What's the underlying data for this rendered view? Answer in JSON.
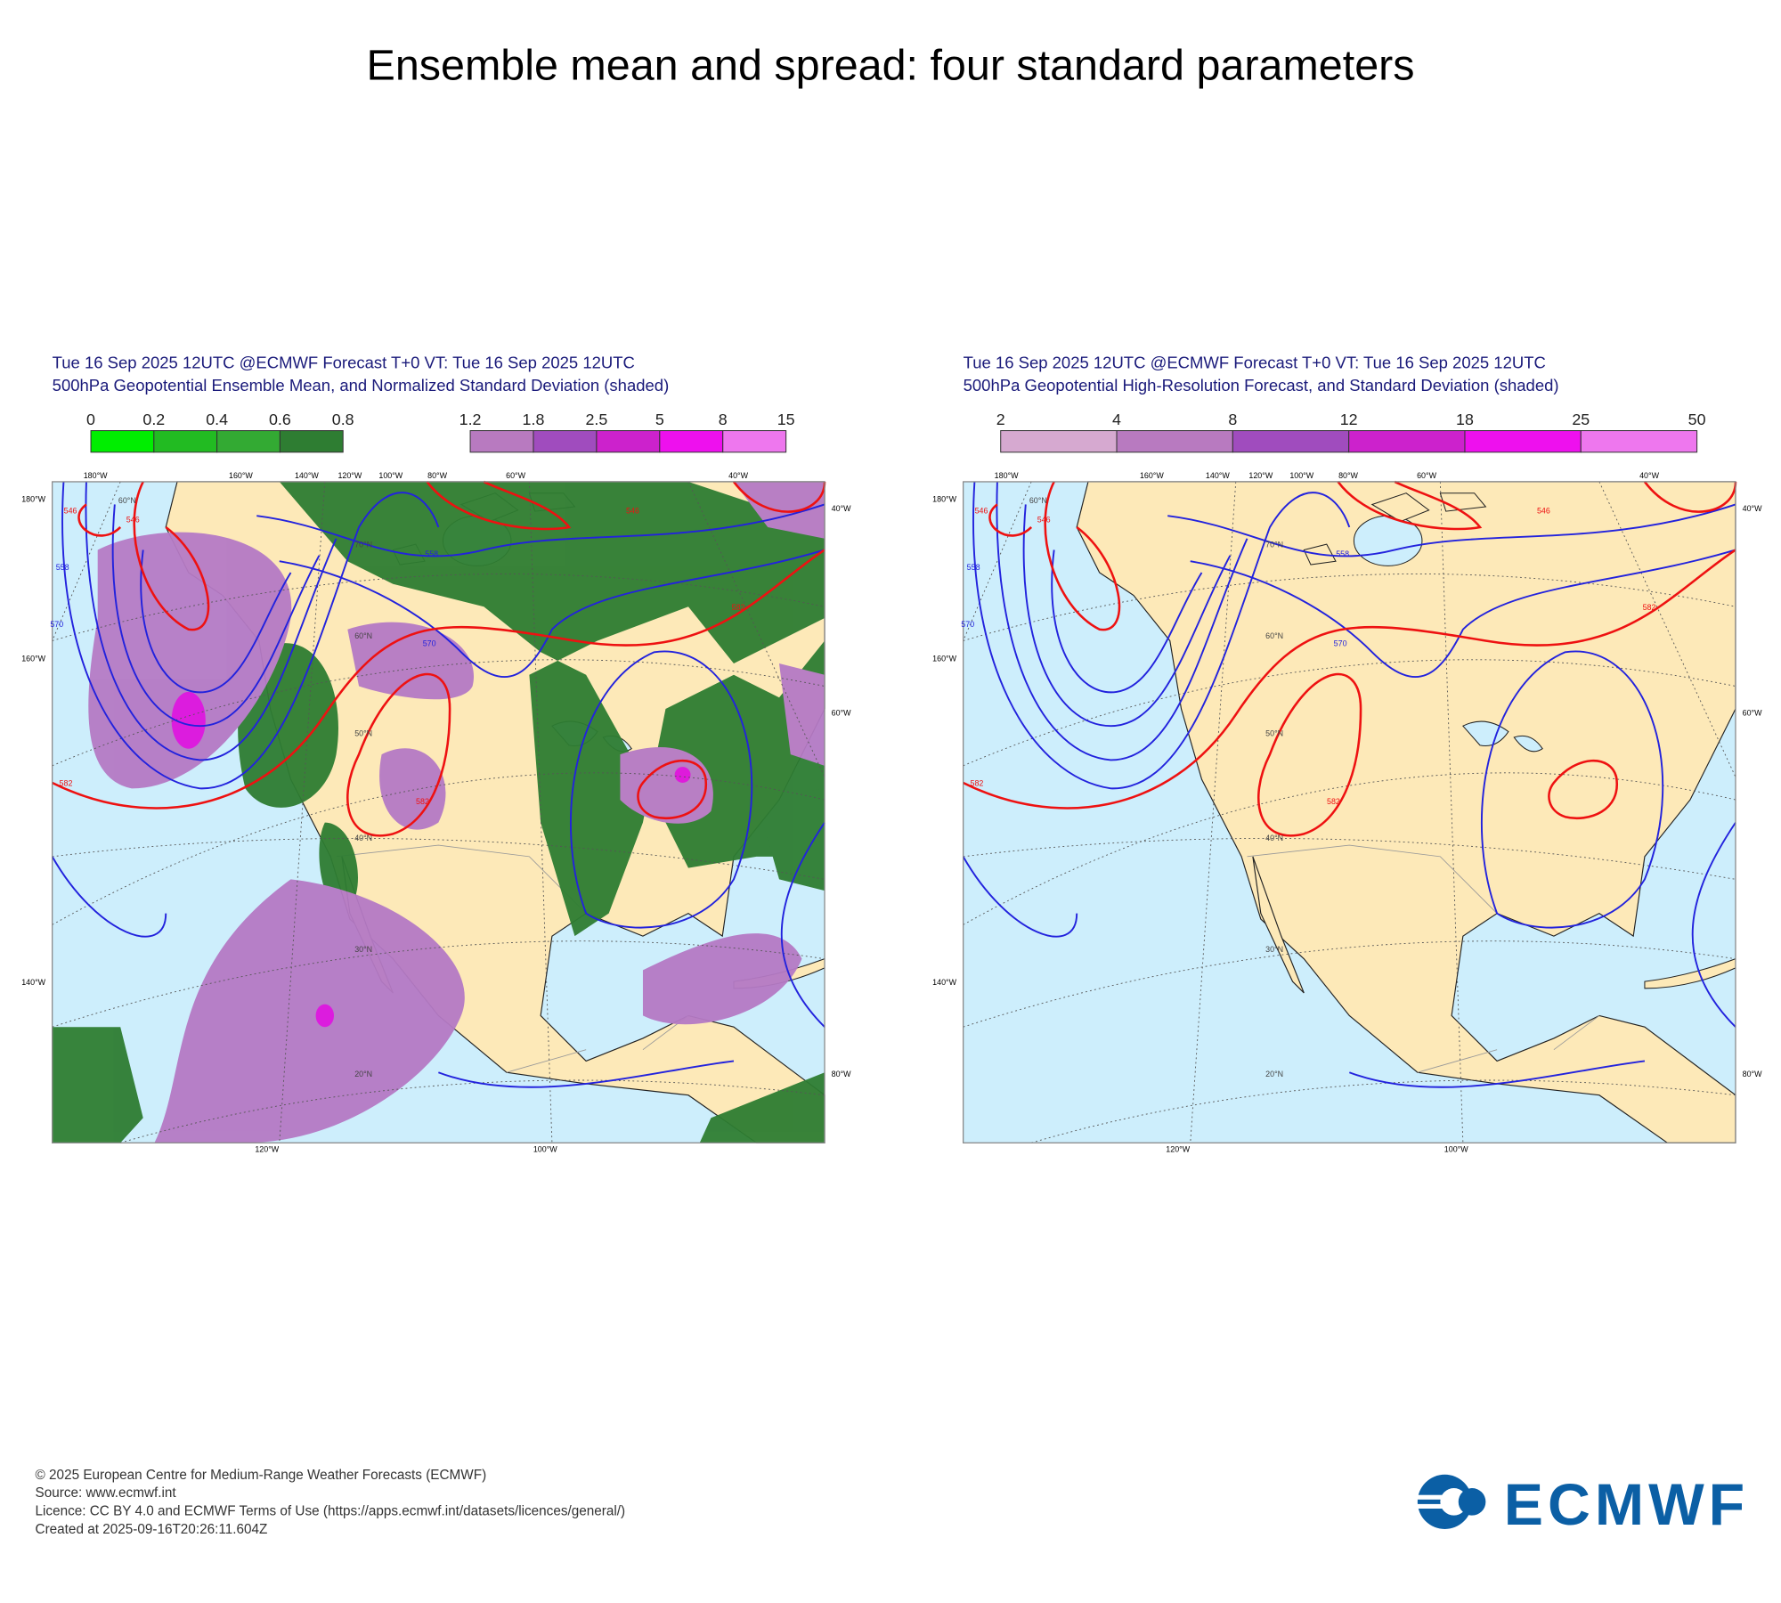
{
  "title": "Ensemble mean and spread: four standard parameters",
  "panels": [
    {
      "header": [
        "Tue 16 Sep 2025 12UTC @ECMWF Forecast T+0 VT: Tue 16 Sep 2025 12UTC",
        "500hPa Geopotential Ensemble Mean, and Normalized Standard Deviation (shaded)"
      ],
      "colorbars": [
        {
          "ticks": [
            0,
            0.2,
            0.4,
            0.6,
            0.8
          ],
          "colors": [
            "#00ee00",
            "#22bb22",
            "#33aa33",
            "#2e7d32"
          ]
        },
        {
          "ticks": [
            1.2,
            1.8,
            2.5,
            5,
            8,
            15
          ],
          "colors": [
            "#b87ac0",
            "#a04cbe",
            "#cc22cc",
            "#ee10ee",
            "#ee77ee"
          ]
        }
      ],
      "map": {
        "labels": [
          "180°W",
          "160°W",
          "140°W",
          "120°W",
          "100°W",
          "80°W",
          "60°W",
          "40°W",
          "180°W",
          "160°W",
          "140°W",
          "40°W",
          "60°W",
          "80°W",
          "120°W",
          "100°W",
          "60°N",
          "70°N",
          "60°N",
          "50°N",
          "40°N",
          "30°N",
          "20°N",
          "546",
          "546",
          "558",
          "570",
          "570",
          "558",
          "582",
          "582",
          "582",
          "546"
        ]
      }
    },
    {
      "header": [
        "Tue 16 Sep 2025 12UTC @ECMWF Forecast T+0 VT: Tue 16 Sep 2025 12UTC",
        "500hPa Geopotential High-Resolution Forecast, and Standard Deviation (shaded)"
      ],
      "colorbars": [
        {
          "ticks": [
            2,
            4,
            8,
            12,
            18,
            25,
            50
          ],
          "colors": [
            "#d6a9d0",
            "#b87ac0",
            "#a04cbe",
            "#cc22cc",
            "#ee10ee",
            "#ee77ee"
          ]
        }
      ],
      "map": {
        "labels": [
          "180°W",
          "160°W",
          "140°W",
          "120°W",
          "100°W",
          "80°W",
          "60°W",
          "40°W",
          "180°W",
          "160°W",
          "140°W",
          "40°W",
          "60°W",
          "80°W",
          "120°W",
          "100°W",
          "60°N",
          "70°N",
          "60°N",
          "50°N",
          "40°N",
          "30°N",
          "20°N",
          "546",
          "546",
          "558",
          "570",
          "570",
          "558",
          "582",
          "582",
          "582",
          "546"
        ]
      }
    }
  ],
  "footer": [
    "© 2025 European Centre for Medium-Range Weather Forecasts (ECMWF)",
    "Source: www.ecmwf.int",
    "Licence: CC BY 4.0 and ECMWF Terms of Use (https://apps.ecmwf.int/datasets/licences/general/)",
    "Created at 2025-09-16T20:26:11.604Z"
  ],
  "logo": "ECMWF"
}
